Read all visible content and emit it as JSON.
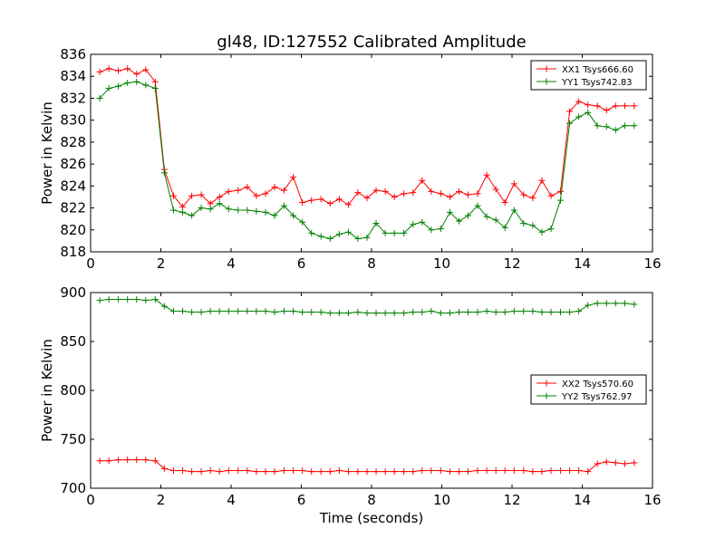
{
  "chart_data": [
    {
      "type": "line",
      "title": "gl48, ID:127552 Calibrated Amplitude",
      "xlabel": "",
      "ylabel": "Power in Kelvin",
      "xlim": [
        0,
        16
      ],
      "ylim": [
        818,
        836
      ],
      "xticks": [
        0,
        2,
        4,
        6,
        8,
        10,
        12,
        14,
        16
      ],
      "yticks": [
        818,
        820,
        822,
        824,
        826,
        828,
        830,
        832,
        834,
        836
      ],
      "grid": false,
      "legend": "top-right",
      "marker": "plus",
      "x": [
        0.26,
        0.52,
        0.79,
        1.05,
        1.31,
        1.57,
        1.84,
        2.1,
        2.36,
        2.62,
        2.88,
        3.15,
        3.41,
        3.67,
        3.93,
        4.2,
        4.46,
        4.72,
        4.98,
        5.24,
        5.51,
        5.77,
        6.03,
        6.29,
        6.56,
        6.82,
        7.08,
        7.34,
        7.61,
        7.87,
        8.13,
        8.39,
        8.65,
        8.92,
        9.18,
        9.44,
        9.7,
        9.97,
        10.23,
        10.49,
        10.75,
        11.02,
        11.28,
        11.54,
        11.8,
        12.06,
        12.33,
        12.59,
        12.85,
        13.11,
        13.38,
        13.64,
        13.9,
        14.16,
        14.43,
        14.69,
        14.95,
        15.21,
        15.48
      ],
      "series": [
        {
          "name": "XX1 Tsys666.60",
          "color": "#ff0000",
          "values": [
            834.4,
            834.7,
            834.5,
            834.7,
            834.2,
            834.6,
            833.5,
            825.5,
            823.1,
            822.1,
            823.1,
            823.2,
            822.4,
            823.0,
            823.5,
            823.6,
            823.9,
            823.1,
            823.3,
            823.9,
            823.6,
            824.8,
            822.5,
            822.7,
            822.8,
            822.4,
            822.8,
            822.3,
            823.4,
            822.9,
            823.6,
            823.5,
            823.0,
            823.3,
            823.4,
            824.5,
            823.5,
            823.3,
            823.0,
            823.5,
            823.2,
            823.3,
            825.0,
            823.7,
            822.5,
            824.2,
            823.2,
            822.9,
            824.5,
            823.1,
            823.5,
            830.8,
            831.7,
            831.4,
            831.3,
            830.9,
            831.3,
            831.3,
            831.3
          ]
        },
        {
          "name": "YY1 Tsys742.83",
          "color": "#008000",
          "values": [
            832.0,
            832.9,
            833.1,
            833.4,
            833.5,
            833.2,
            832.9,
            825.2,
            821.8,
            821.6,
            821.3,
            822.0,
            821.9,
            822.4,
            821.9,
            821.8,
            821.8,
            821.7,
            821.6,
            821.3,
            822.2,
            821.3,
            820.7,
            819.7,
            819.4,
            819.2,
            819.6,
            819.8,
            819.2,
            819.3,
            820.6,
            819.7,
            819.7,
            819.7,
            820.5,
            820.7,
            820.0,
            820.1,
            821.6,
            820.8,
            821.3,
            822.2,
            821.2,
            820.9,
            820.2,
            821.8,
            820.6,
            820.4,
            819.8,
            820.1,
            822.7,
            829.7,
            830.3,
            830.7,
            829.5,
            829.4,
            829.1,
            829.5,
            829.5
          ]
        }
      ]
    },
    {
      "type": "line",
      "title": "",
      "xlabel": "Time (seconds)",
      "ylabel": "Power in Kelvin",
      "xlim": [
        0,
        16
      ],
      "ylim": [
        700,
        900
      ],
      "xticks": [
        0,
        2,
        4,
        6,
        8,
        10,
        12,
        14,
        16
      ],
      "yticks": [
        700,
        750,
        800,
        850,
        900
      ],
      "grid": false,
      "legend": "center-right",
      "marker": "plus",
      "x": [
        0.26,
        0.52,
        0.79,
        1.05,
        1.31,
        1.57,
        1.84,
        2.1,
        2.36,
        2.62,
        2.88,
        3.15,
        3.41,
        3.67,
        3.93,
        4.2,
        4.46,
        4.72,
        4.98,
        5.24,
        5.51,
        5.77,
        6.03,
        6.29,
        6.56,
        6.82,
        7.08,
        7.34,
        7.61,
        7.87,
        8.13,
        8.39,
        8.65,
        8.92,
        9.18,
        9.44,
        9.7,
        9.97,
        10.23,
        10.49,
        10.75,
        11.02,
        11.28,
        11.54,
        11.8,
        12.06,
        12.33,
        12.59,
        12.85,
        13.11,
        13.38,
        13.64,
        13.9,
        14.16,
        14.43,
        14.69,
        14.95,
        15.21,
        15.48
      ],
      "series": [
        {
          "name": "XX2 Tsys570.60",
          "color": "#ff0000",
          "values": [
            728,
            728,
            729,
            729,
            729,
            729,
            728,
            720,
            718,
            718,
            717,
            717,
            718,
            717,
            718,
            718,
            718,
            717,
            717,
            717,
            718,
            718,
            718,
            717,
            717,
            717,
            718,
            717,
            717,
            717,
            717,
            717,
            717,
            717,
            717,
            718,
            718,
            718,
            717,
            717,
            717,
            718,
            718,
            718,
            718,
            718,
            718,
            717,
            717,
            718,
            718,
            718,
            718,
            717,
            725,
            727,
            726,
            725,
            726
          ]
        },
        {
          "name": "YY2 Tsys762.97",
          "color": "#008000",
          "values": [
            892,
            893,
            893,
            893,
            893,
            892,
            893,
            886,
            881,
            881,
            880,
            880,
            881,
            881,
            881,
            881,
            881,
            881,
            881,
            880,
            881,
            881,
            880,
            880,
            880,
            879,
            879,
            879,
            880,
            879,
            879,
            879,
            879,
            879,
            880,
            880,
            881,
            879,
            879,
            880,
            880,
            880,
            881,
            880,
            880,
            881,
            881,
            881,
            880,
            880,
            880,
            880,
            881,
            887,
            889,
            889,
            889,
            889,
            888
          ]
        }
      ]
    }
  ]
}
